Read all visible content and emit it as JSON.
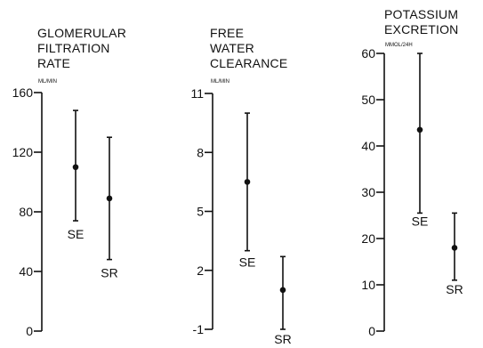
{
  "chart_data": [
    {
      "type": "scatter",
      "title_lines": [
        "GLOMERULAR",
        "FILTRATION",
        "RATE"
      ],
      "unit": "ML/MIN",
      "ylim": [
        0,
        160
      ],
      "yticks": [
        0,
        40,
        80,
        120,
        160
      ],
      "grid": false,
      "series": [
        {
          "name": "SE",
          "mean": 110,
          "low": 74,
          "high": 148
        },
        {
          "name": "SR",
          "mean": 89,
          "low": 48,
          "high": 130
        }
      ]
    },
    {
      "type": "scatter",
      "title_lines": [
        "FREE",
        "WATER",
        "CLEARANCE"
      ],
      "unit": "ML/MIN",
      "ylim": [
        -1,
        11
      ],
      "yticks": [
        -1,
        2,
        5,
        8,
        11
      ],
      "grid": false,
      "series": [
        {
          "name": "SE",
          "mean": 6.5,
          "low": 3.0,
          "high": 10.0
        },
        {
          "name": "SR",
          "mean": 1.0,
          "low": -1.0,
          "high": 2.7
        }
      ]
    },
    {
      "type": "scatter",
      "title_lines": [
        "POTASSIUM",
        "EXCRETION"
      ],
      "unit": "MMOL/24H",
      "ylim": [
        0,
        60
      ],
      "yticks": [
        0,
        10,
        20,
        30,
        40,
        50,
        60
      ],
      "grid": false,
      "series": [
        {
          "name": "SE",
          "mean": 43.5,
          "low": 25.5,
          "high": 60
        },
        {
          "name": "SR",
          "mean": 18,
          "low": 11,
          "high": 25.5
        }
      ]
    }
  ]
}
